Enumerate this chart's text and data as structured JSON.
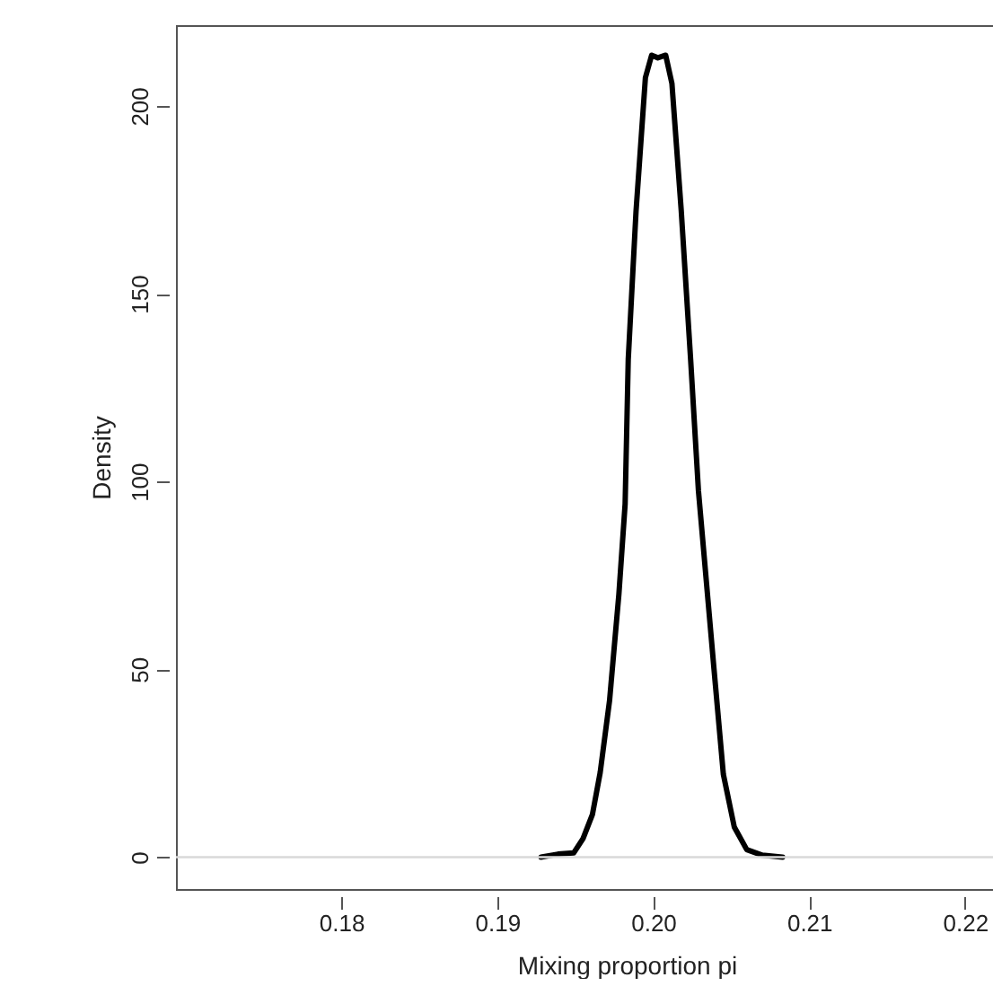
{
  "chart_data": {
    "type": "line",
    "xlabel": "Mixing proportion pi",
    "ylabel": "Density",
    "x": [
      0.1928,
      0.1939,
      0.1949,
      0.1955,
      0.1961,
      0.1966,
      0.1972,
      0.1978,
      0.1982,
      0.1984,
      0.1989,
      0.1995,
      0.1999,
      0.2003,
      0.2008,
      0.2012,
      0.2018,
      0.2024,
      0.2029,
      0.2039,
      0.2045,
      0.2052,
      0.206,
      0.207,
      0.2083
    ],
    "series": [
      {
        "color": "#000000",
        "values": [
          0,
          0.8,
          1.1,
          4.9,
          11.3,
          22.5,
          41.6,
          70,
          94,
          132.5,
          172,
          207.5,
          213.5,
          212.8,
          213.5,
          206,
          172,
          132.5,
          97.6,
          50,
          22,
          8,
          2,
          0.5,
          0
        ]
      }
    ],
    "xlim": [
      0.1694,
      0.2272
    ],
    "xticks": [
      0.18,
      0.19,
      {
        "value": 0.2,
        "label": "0.20"
      },
      0.21,
      0.22
    ],
    "ylim": [
      -8.5,
      221.5
    ],
    "yticks": [
      0,
      50,
      100,
      150,
      200
    ],
    "ref_lines": [
      {
        "axis": "y",
        "value": 0,
        "color": "#d9d9d9"
      }
    ],
    "line_style": "solid",
    "marker": "none",
    "grid": false
  }
}
